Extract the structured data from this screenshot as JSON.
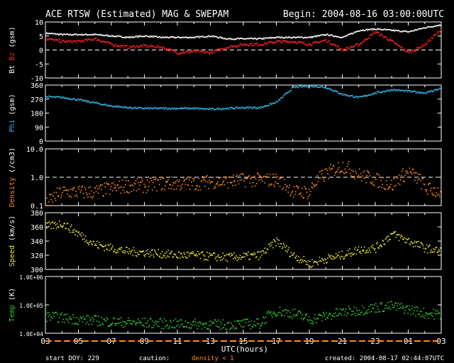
{
  "header": {
    "title": "ACE RTSW (Estimated) MAG & SWEPAM",
    "begin": "Begin: 2004-08-16 03:00:00UTC"
  },
  "footer": {
    "start_doy": "start DOY: 229",
    "caution": "caution:",
    "density_note": "density < 1",
    "created": "created: 2004-08-17 02:44:07UTC",
    "xlabel": "UTC(hours)"
  },
  "colors": {
    "bt": "#ffffff",
    "bz": "#ff2020",
    "phi": "#33b5e5",
    "density": "#ff8c1a",
    "speed": "#e6e633",
    "temp": "#33cc33",
    "axis": "#ffffff",
    "caution_bar": "#ff8c1a"
  },
  "chart_data": [
    {
      "type": "scatter",
      "panel": "mag",
      "ylabel_parts": [
        "Bt",
        "Bz",
        "(gsm)"
      ],
      "ylim": [
        -10,
        10
      ],
      "yticks": [
        10,
        5,
        0,
        -5,
        -10
      ],
      "yticklabels": [
        "10",
        "5",
        "0",
        "-5",
        "-10"
      ],
      "reference_lines": [
        0
      ],
      "x_hours": [
        0,
        1,
        2,
        3,
        4,
        5,
        6,
        7,
        8,
        9,
        10,
        11,
        12,
        13,
        14,
        15,
        16,
        17,
        18,
        19,
        20,
        21,
        22,
        23,
        24
      ],
      "series": [
        {
          "name": "Bt",
          "values": [
            6,
            5.5,
            5.5,
            5.5,
            5,
            4.5,
            5,
            4.5,
            4.5,
            4.5,
            5,
            4,
            4,
            4,
            4.5,
            4.5,
            4.5,
            5.5,
            4.5,
            7,
            7.5,
            7,
            6.5,
            8,
            9
          ]
        },
        {
          "name": "Bz",
          "values": [
            4,
            3,
            3,
            4,
            2,
            1,
            1.5,
            1,
            -1,
            -0.5,
            -1,
            1,
            2,
            2,
            3,
            3,
            2,
            3.5,
            0,
            2,
            6.5,
            3,
            -1,
            2,
            7.5
          ]
        }
      ]
    },
    {
      "type": "scatter",
      "panel": "phi",
      "ylabel_parts": [
        "Phi",
        "(gsm)"
      ],
      "ylim": [
        0,
        360
      ],
      "yticks": [
        360,
        270,
        180,
        90,
        0
      ],
      "yticklabels": [
        "360",
        "270",
        "180",
        "90",
        "0"
      ],
      "x_hours": [
        0,
        1,
        2,
        3,
        4,
        5,
        6,
        7,
        8,
        9,
        10,
        11,
        12,
        13,
        14,
        15,
        16,
        17,
        18,
        19,
        20,
        21,
        22,
        23,
        24
      ],
      "series": [
        {
          "name": "Phi",
          "values": [
            285,
            280,
            265,
            245,
            225,
            215,
            210,
            210,
            210,
            210,
            205,
            210,
            215,
            215,
            250,
            345,
            355,
            345,
            300,
            280,
            310,
            330,
            320,
            310,
            340
          ]
        }
      ]
    },
    {
      "type": "scatter",
      "panel": "density",
      "ylabel_parts": [
        "Density",
        "(/cm3)"
      ],
      "yscale": "log",
      "ylim": [
        0.1,
        10
      ],
      "yticks": [
        10,
        1,
        0.1
      ],
      "yticklabels": [
        "10.0",
        "1.0",
        "0.1"
      ],
      "reference_lines": [
        1
      ],
      "x_hours": [
        0,
        1,
        2,
        3,
        4,
        5,
        6,
        7,
        8,
        9,
        10,
        11,
        12,
        13,
        14,
        15,
        16,
        17,
        18,
        19,
        20,
        21,
        22,
        23,
        24
      ],
      "series": [
        {
          "name": "Density",
          "values": [
            0.1,
            0.3,
            0.3,
            0.3,
            0.4,
            0.5,
            0.5,
            0.6,
            0.6,
            0.6,
            0.7,
            0.7,
            0.8,
            0.8,
            0.8,
            0.3,
            0.3,
            1.3,
            2.5,
            1.2,
            0.8,
            0.5,
            1.5,
            0.4,
            0.3
          ]
        }
      ]
    },
    {
      "type": "scatter",
      "panel": "speed",
      "ylabel_parts": [
        "Speed",
        "(km/s)"
      ],
      "ylim": [
        300,
        380
      ],
      "yticks": [
        380,
        360,
        340,
        320,
        300
      ],
      "yticklabels": [
        "380",
        "360",
        "340",
        "320",
        "300"
      ],
      "x_hours": [
        0,
        1,
        2,
        3,
        4,
        5,
        6,
        7,
        8,
        9,
        10,
        11,
        12,
        13,
        14,
        15,
        16,
        17,
        18,
        19,
        20,
        21,
        22,
        23,
        24
      ],
      "series": [
        {
          "name": "Speed",
          "values": [
            360,
            365,
            350,
            335,
            330,
            325,
            324,
            322,
            320,
            320,
            318,
            317,
            318,
            320,
            340,
            320,
            308,
            315,
            320,
            328,
            330,
            350,
            340,
            330,
            325
          ]
        }
      ]
    },
    {
      "type": "scatter",
      "panel": "temp",
      "ylabel_parts": [
        "Temp",
        "(K)"
      ],
      "yscale": "log",
      "ylim": [
        10000,
        1000000
      ],
      "yticks": [
        1000000,
        100000,
        10000
      ],
      "yticklabels": [
        "1.0E+06",
        "1.0E+05",
        "1.0E+04"
      ],
      "x_hours": [
        0,
        1,
        2,
        3,
        4,
        5,
        6,
        7,
        8,
        9,
        10,
        11,
        12,
        13,
        14,
        15,
        16,
        17,
        18,
        19,
        20,
        21,
        22,
        23,
        24
      ],
      "series": [
        {
          "name": "Temp",
          "values": [
            40000,
            35000,
            30000,
            28000,
            25000,
            24000,
            23000,
            22000,
            21000,
            21000,
            20000,
            20000,
            21000,
            22000,
            60000,
            50000,
            30000,
            40000,
            55000,
            65000,
            80000,
            90000,
            70000,
            50000,
            45000
          ]
        }
      ]
    }
  ],
  "x_axis": {
    "range_hours": [
      0,
      24
    ],
    "ticklabels": [
      "03",
      "05",
      "07",
      "09",
      "11",
      "13",
      "15",
      "17",
      "19",
      "21",
      "23",
      "01",
      "03"
    ]
  }
}
